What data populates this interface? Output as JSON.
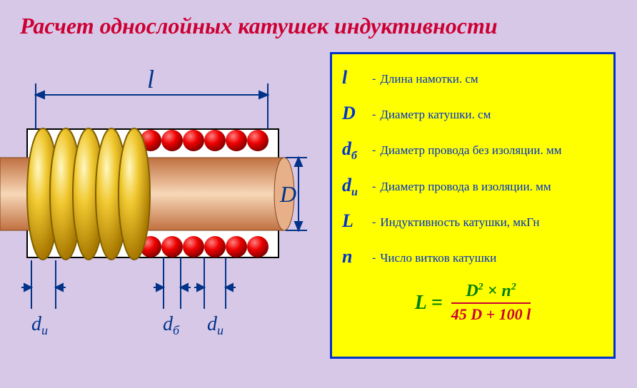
{
  "title": "Расчет однослойных катушек индуктивности",
  "legend": [
    {
      "sym": "l",
      "sub": "",
      "text": "Длина намотки. см"
    },
    {
      "sym": "D",
      "sub": "",
      "text": "Диаметр катушки. см"
    },
    {
      "sym": "d",
      "sub": "б",
      "text": "Диаметр провода без изоляции. мм"
    },
    {
      "sym": "d",
      "sub": "u",
      "text": "Диаметр провода в изоляции. мм"
    },
    {
      "sym": "L",
      "sub": "",
      "text": "Индуктивность катушки, мкГн"
    },
    {
      "sym": "n",
      "sub": "",
      "text": "Число витков катушки"
    }
  ],
  "formula": {
    "lhs": "L =",
    "numerator_html": "D<sup>2</sup> × n<sup>2</sup>",
    "denominator": "45 D + 100 l"
  },
  "diagram": {
    "labels": {
      "l": "l",
      "D": "D",
      "du": "d",
      "du_sub": "u",
      "db": "d",
      "db_sub": "б"
    },
    "colors": {
      "bg": "#d8c8e8",
      "core_outer": "#c88860",
      "core_inner_light": "#f0c8a8",
      "core_inner_dark": "#d89878",
      "coil_gold_light": "#ffe070",
      "coil_gold_dark": "#b88800",
      "red_light": "#ff3030",
      "red_dark": "#aa0000",
      "white": "#ffffff",
      "dim_line": "#003388",
      "text": "#003388"
    }
  }
}
